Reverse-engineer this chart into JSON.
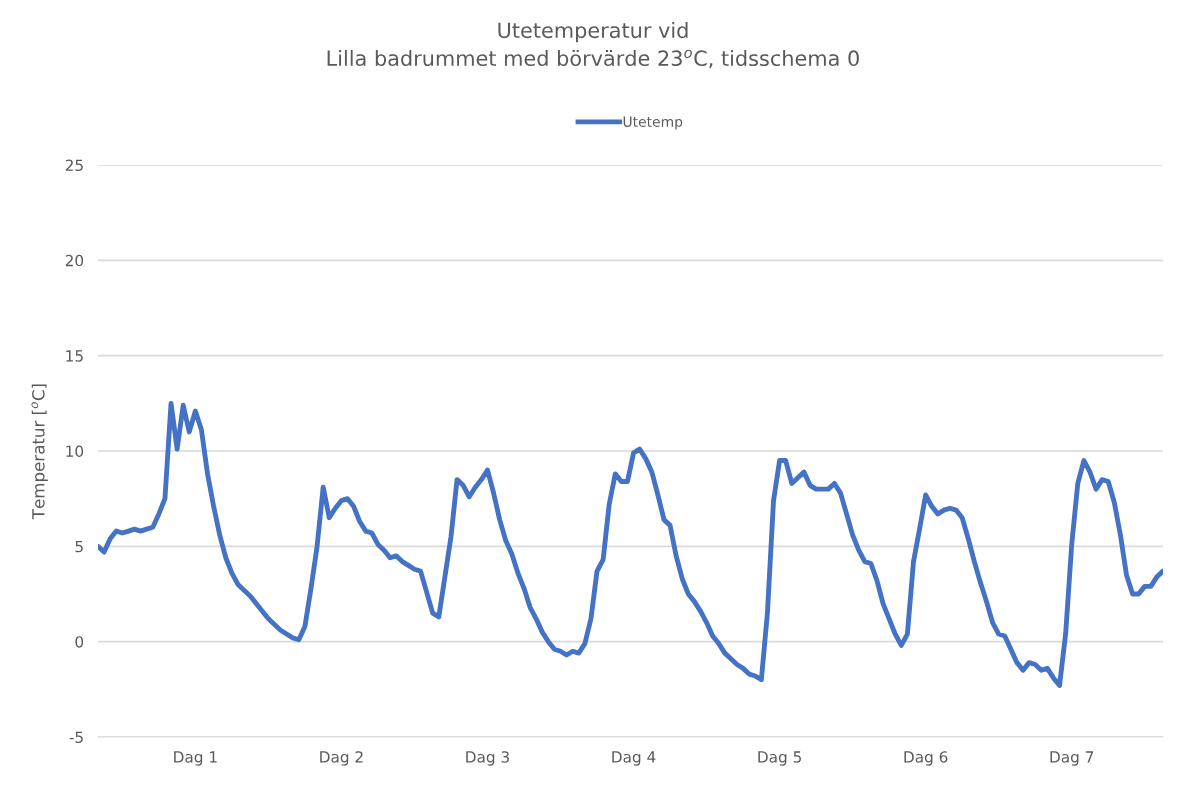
{
  "chart_data": {
    "type": "line",
    "title": "Utetemperatur vid\nLilla badrummet med börvärde 23$^{o}$C, tidsschema 0",
    "ylabel": "Temperatur [$^{o}$C]",
    "categories": [
      null,
      null,
      null,
      null,
      null,
      null,
      null,
      null,
      null,
      null,
      null,
      null,
      null,
      null,
      null,
      null,
      "Dag 1",
      null,
      null,
      null,
      null,
      null,
      null,
      null,
      null,
      null,
      null,
      null,
      null,
      null,
      null,
      null,
      null,
      null,
      null,
      null,
      null,
      null,
      null,
      null,
      "Dag 2",
      null,
      null,
      null,
      null,
      null,
      null,
      null,
      null,
      null,
      null,
      null,
      null,
      null,
      null,
      null,
      null,
      null,
      null,
      null,
      null,
      null,
      null,
      null,
      "Dag 3",
      null,
      null,
      null,
      null,
      null,
      null,
      null,
      null,
      null,
      null,
      null,
      null,
      null,
      null,
      null,
      null,
      null,
      null,
      null,
      null,
      null,
      null,
      null,
      "Dag 4",
      null,
      null,
      null,
      null,
      null,
      null,
      null,
      null,
      null,
      null,
      null,
      null,
      null,
      null,
      null,
      null,
      null,
      null,
      null,
      null,
      null,
      null,
      null,
      "Dag 5",
      null,
      null,
      null,
      null,
      null,
      null,
      null,
      null,
      null,
      null,
      null,
      null,
      null,
      null,
      null,
      null,
      null,
      null,
      null,
      null,
      null,
      null,
      null,
      "Dag 6",
      null,
      null,
      null,
      null,
      null,
      null,
      null,
      null,
      null,
      null,
      null,
      null,
      null,
      null,
      null,
      null,
      null,
      null,
      null,
      null,
      null,
      null,
      null,
      "Dag 7",
      null,
      null,
      null,
      null,
      null,
      null,
      null,
      null,
      null,
      null,
      null,
      null,
      null,
      null,
      null
    ],
    "ylim": [
      -5,
      25
    ],
    "yticks": [
      -5,
      0,
      5,
      10,
      15,
      20,
      25
    ],
    "grid": "y",
    "legend": "top",
    "marker": "none",
    "line_style": "solid",
    "series": [
      {
        "name": "Utetemp",
        "color": "#4472c4",
        "values": [
          5.0,
          4.7,
          5.4,
          5.8,
          5.7,
          5.8,
          5.9,
          5.8,
          5.9,
          6.0,
          6.7,
          7.5,
          12.5,
          10.1,
          12.4,
          11.0,
          12.1,
          11.1,
          8.8,
          7.1,
          5.6,
          4.4,
          3.6,
          3.0,
          2.7,
          2.4,
          2.0,
          1.6,
          1.2,
          0.9,
          0.6,
          0.4,
          0.2,
          0.1,
          0.8,
          2.8,
          5.0,
          8.1,
          6.5,
          7.0,
          7.4,
          7.5,
          7.1,
          6.3,
          5.8,
          5.7,
          5.1,
          4.8,
          4.4,
          4.5,
          4.2,
          4.0,
          3.8,
          3.7,
          2.6,
          1.5,
          1.3,
          3.4,
          5.5,
          8.5,
          8.2,
          7.6,
          8.1,
          8.5,
          9.0,
          7.8,
          6.4,
          5.3,
          4.6,
          3.6,
          2.8,
          1.8,
          1.2,
          0.5,
          0.0,
          -0.4,
          -0.5,
          -0.7,
          -0.5,
          -0.6,
          -0.1,
          1.2,
          3.7,
          4.3,
          7.2,
          8.8,
          8.4,
          8.4,
          9.9,
          10.1,
          9.6,
          8.9,
          7.7,
          6.4,
          6.1,
          4.5,
          3.3,
          2.5,
          2.1,
          1.6,
          1.0,
          0.3,
          -0.1,
          -0.6,
          -0.9,
          -1.2,
          -1.4,
          -1.7,
          -1.8,
          -2.0,
          1.5,
          7.4,
          9.5,
          9.5,
          8.3,
          8.6,
          8.9,
          8.2,
          8.0,
          8.0,
          8.0,
          8.3,
          7.8,
          6.7,
          5.6,
          4.8,
          4.2,
          4.1,
          3.2,
          2.0,
          1.2,
          0.4,
          -0.2,
          0.4,
          4.2,
          5.9,
          7.7,
          7.1,
          6.7,
          6.9,
          7.0,
          6.9,
          6.5,
          5.4,
          4.2,
          3.1,
          2.1,
          1.0,
          0.4,
          0.3,
          -0.4,
          -1.1,
          -1.5,
          -1.1,
          -1.2,
          -1.5,
          -1.4,
          -1.9,
          -2.3,
          0.4,
          5.1,
          8.3,
          9.5,
          8.9,
          8.0,
          8.5,
          8.4,
          7.3,
          5.6,
          3.5,
          2.5,
          2.5,
          2.9,
          2.9,
          3.4,
          3.7
        ]
      }
    ]
  }
}
